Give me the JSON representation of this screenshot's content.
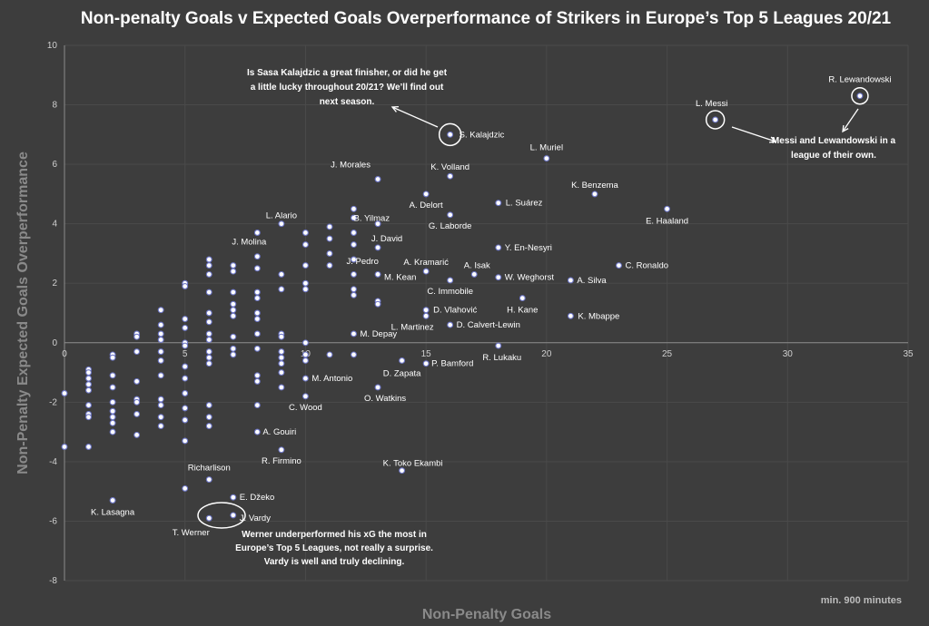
{
  "chart_data": {
    "type": "scatter",
    "title": "Non-penalty Goals v Expected Goals Overperformance of Strikers in Europe’s Top 5 Leagues 20/21",
    "xlabel": "Non-Penalty Goals",
    "ylabel": "Non-Penalty Expected Goals Overperformance",
    "xlim": [
      0,
      35
    ],
    "ylim": [
      -8,
      10
    ],
    "xticks": [
      0,
      5,
      10,
      15,
      20,
      25,
      30,
      35
    ],
    "yticks": [
      -8,
      -6,
      -4,
      -2,
      0,
      2,
      4,
      6,
      8,
      10
    ],
    "footnote": "min. 900 minutes",
    "labeled_points": [
      {
        "name": "R. Lewandowski",
        "x": 33,
        "y": 8.3,
        "highlight": true
      },
      {
        "name": "L. Messi",
        "x": 27,
        "y": 7.5,
        "highlight": true
      },
      {
        "name": "S. Kalajdzic",
        "x": 16,
        "y": 7.0,
        "highlight": true
      },
      {
        "name": "L. Muriel",
        "x": 20,
        "y": 6.2
      },
      {
        "name": "J. Morales",
        "x": 13,
        "y": 5.5
      },
      {
        "name": "K. Volland",
        "x": 16,
        "y": 5.6
      },
      {
        "name": "K. Benzema",
        "x": 22,
        "y": 5.0
      },
      {
        "name": "A. Delort",
        "x": 15,
        "y": 5.0
      },
      {
        "name": "L. Suárez",
        "x": 18,
        "y": 4.7
      },
      {
        "name": "E. Haaland",
        "x": 25,
        "y": 4.5
      },
      {
        "name": "B. Yilmaz",
        "x": 12,
        "y": 4.5
      },
      {
        "name": "L. Alario",
        "x": 9,
        "y": 4.0
      },
      {
        "name": "G. Laborde",
        "x": 16,
        "y": 4.3
      },
      {
        "name": "J. Molina",
        "x": 8,
        "y": 3.7
      },
      {
        "name": "J. David",
        "x": 13,
        "y": 3.2
      },
      {
        "name": "Y. En-Nesyri",
        "x": 18,
        "y": 3.2
      },
      {
        "name": "J. Pedro",
        "x": 12,
        "y": 2.8
      },
      {
        "name": "A. Kramarić",
        "x": 15,
        "y": 2.4
      },
      {
        "name": "A. Isak",
        "x": 17,
        "y": 2.3
      },
      {
        "name": "C. Ronaldo",
        "x": 23,
        "y": 2.6
      },
      {
        "name": "M. Kean",
        "x": 13,
        "y": 2.3
      },
      {
        "name": "W. Weghorst",
        "x": 18,
        "y": 2.2
      },
      {
        "name": "A. Silva",
        "x": 21,
        "y": 2.1
      },
      {
        "name": "C. Immobile",
        "x": 16,
        "y": 2.1
      },
      {
        "name": "H. Kane",
        "x": 19,
        "y": 1.5
      },
      {
        "name": "D. Vlahović",
        "x": 15,
        "y": 1.1
      },
      {
        "name": "L. Martinez",
        "x": 15,
        "y": 0.9
      },
      {
        "name": "K. Mbappe",
        "x": 21,
        "y": 0.9
      },
      {
        "name": "D. Calvert-Lewin",
        "x": 16,
        "y": 0.6
      },
      {
        "name": "M. Depay",
        "x": 12,
        "y": 0.3
      },
      {
        "name": "R. Lukaku",
        "x": 18,
        "y": -0.1
      },
      {
        "name": "P. Bamford",
        "x": 15,
        "y": -0.7
      },
      {
        "name": "D. Zapata",
        "x": 14,
        "y": -0.6
      },
      {
        "name": "M. Antonio",
        "x": 10,
        "y": -1.2
      },
      {
        "name": "O. Watkins",
        "x": 13,
        "y": -1.5
      },
      {
        "name": "C. Wood",
        "x": 10,
        "y": -1.8
      },
      {
        "name": "A. Gouiri",
        "x": 8,
        "y": -3.0
      },
      {
        "name": "R. Firmino",
        "x": 9,
        "y": -3.6
      },
      {
        "name": "K. Toko Ekambi",
        "x": 14,
        "y": -4.3
      },
      {
        "name": "Richarlison",
        "x": 6,
        "y": -4.6
      },
      {
        "name": "E. Džeko",
        "x": 7,
        "y": -5.2
      },
      {
        "name": "K. Lasagna",
        "x": 2,
        "y": -5.3
      },
      {
        "name": "J. Vardy",
        "x": 7,
        "y": -5.8,
        "highlight": true
      },
      {
        "name": "T. Werner",
        "x": 6,
        "y": -5.9,
        "highlight": true
      }
    ],
    "other_points": [
      [
        0,
        -1.7
      ],
      [
        0,
        -3.5
      ],
      [
        1,
        -0.9
      ],
      [
        1,
        -1.0
      ],
      [
        1,
        -1.2
      ],
      [
        1,
        -1.4
      ],
      [
        1,
        -1.6
      ],
      [
        1,
        -2.1
      ],
      [
        1,
        -2.4
      ],
      [
        1,
        -2.5
      ],
      [
        1,
        -3.5
      ],
      [
        2,
        -0.4
      ],
      [
        2,
        -0.5
      ],
      [
        2,
        -1.1
      ],
      [
        2,
        -1.5
      ],
      [
        2,
        -2.0
      ],
      [
        2,
        -2.3
      ],
      [
        2,
        -2.5
      ],
      [
        2,
        -2.7
      ],
      [
        2,
        -3.0
      ],
      [
        3,
        0.3
      ],
      [
        3,
        0.2
      ],
      [
        3,
        -0.3
      ],
      [
        3,
        -1.3
      ],
      [
        3,
        -1.9
      ],
      [
        3,
        -2.0
      ],
      [
        3,
        -2.4
      ],
      [
        3,
        -3.1
      ],
      [
        4,
        1.1
      ],
      [
        4,
        0.6
      ],
      [
        4,
        0.3
      ],
      [
        4,
        0.1
      ],
      [
        4,
        -0.3
      ],
      [
        4,
        -0.6
      ],
      [
        4,
        -1.1
      ],
      [
        4,
        -1.9
      ],
      [
        4,
        -2.1
      ],
      [
        4,
        -2.5
      ],
      [
        4,
        -2.8
      ],
      [
        5,
        2.0
      ],
      [
        5,
        1.9
      ],
      [
        5,
        0.8
      ],
      [
        5,
        0.5
      ],
      [
        5,
        0.0
      ],
      [
        5,
        -0.1
      ],
      [
        5,
        -0.8
      ],
      [
        5,
        -1.2
      ],
      [
        5,
        -1.7
      ],
      [
        5,
        -2.2
      ],
      [
        5,
        -2.6
      ],
      [
        5,
        -3.3
      ],
      [
        5,
        -4.9
      ],
      [
        6,
        2.8
      ],
      [
        6,
        2.6
      ],
      [
        6,
        2.3
      ],
      [
        6,
        1.7
      ],
      [
        6,
        1.0
      ],
      [
        6,
        0.7
      ],
      [
        6,
        0.3
      ],
      [
        6,
        0.1
      ],
      [
        6,
        -0.3
      ],
      [
        6,
        -0.5
      ],
      [
        6,
        -0.7
      ],
      [
        6,
        -2.1
      ],
      [
        6,
        -2.5
      ],
      [
        6,
        -2.8
      ],
      [
        7,
        2.6
      ],
      [
        7,
        2.4
      ],
      [
        7,
        1.7
      ],
      [
        7,
        1.3
      ],
      [
        7,
        1.1
      ],
      [
        7,
        0.9
      ],
      [
        7,
        0.2
      ],
      [
        7,
        -0.2
      ],
      [
        7,
        -0.4
      ],
      [
        8,
        2.9
      ],
      [
        8,
        2.5
      ],
      [
        8,
        1.7
      ],
      [
        8,
        1.5
      ],
      [
        8,
        1.0
      ],
      [
        8,
        0.8
      ],
      [
        8,
        0.3
      ],
      [
        8,
        -0.2
      ],
      [
        8,
        -1.1
      ],
      [
        8,
        -1.3
      ],
      [
        8,
        -2.1
      ],
      [
        9,
        2.3
      ],
      [
        9,
        1.8
      ],
      [
        9,
        0.3
      ],
      [
        9,
        0.2
      ],
      [
        9,
        -0.3
      ],
      [
        9,
        -0.5
      ],
      [
        9,
        -0.7
      ],
      [
        9,
        -1.0
      ],
      [
        9,
        -1.5
      ],
      [
        10,
        3.7
      ],
      [
        10,
        3.3
      ],
      [
        10,
        2.6
      ],
      [
        10,
        2.0
      ],
      [
        10,
        1.8
      ],
      [
        10,
        0.0
      ],
      [
        10,
        -0.4
      ],
      [
        10,
        -0.6
      ],
      [
        11,
        3.9
      ],
      [
        11,
        3.5
      ],
      [
        11,
        3.0
      ],
      [
        11,
        2.6
      ],
      [
        11,
        -0.4
      ],
      [
        12,
        4.2
      ],
      [
        12,
        3.7
      ],
      [
        12,
        3.3
      ],
      [
        12,
        2.3
      ],
      [
        12,
        1.8
      ],
      [
        12,
        1.6
      ],
      [
        12,
        -0.4
      ],
      [
        13,
        4.0
      ],
      [
        13,
        1.4
      ],
      [
        13,
        1.3
      ]
    ],
    "annotations": [
      {
        "text": [
          "Is Sasa Kalajdzic a great finisher, or did he get",
          "a little lucky throughout 20/21? We’ll find out",
          "next season."
        ]
      },
      {
        "text": [
          "Messi and Lewandowski in a",
          "league of their own."
        ]
      },
      {
        "text": [
          "Werner underperformed his xG the most in",
          "Europe’s Top 5 Leagues, not really a surprise.",
          "Vardy is well and truly declining."
        ]
      }
    ]
  }
}
